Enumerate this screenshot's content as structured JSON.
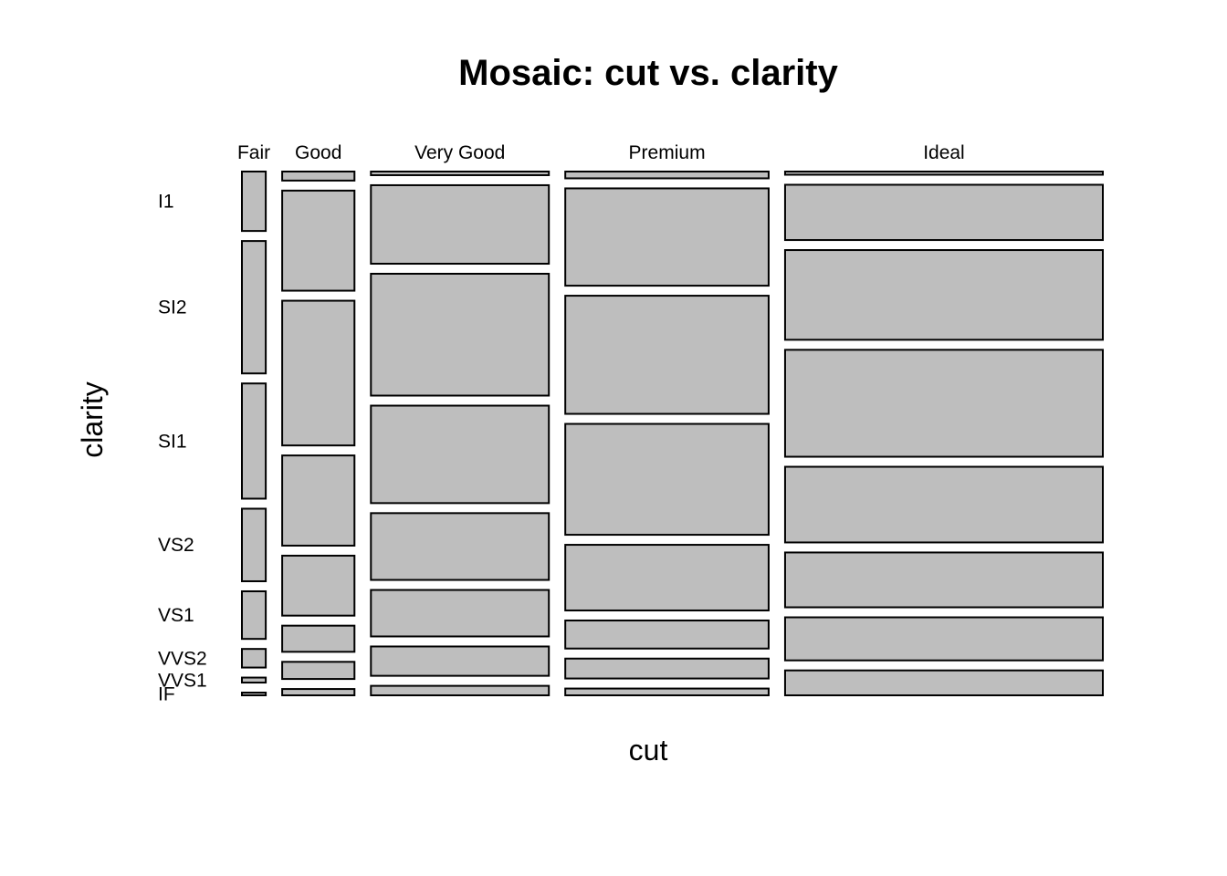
{
  "chart_data": {
    "type": "mosaic",
    "title": "Mosaic: cut vs. clarity",
    "xlabel": "cut",
    "ylabel": "clarity",
    "categories": [
      "Fair",
      "Good",
      "Very Good",
      "Premium",
      "Ideal"
    ],
    "clarity_levels": [
      "I1",
      "SI2",
      "SI1",
      "VS2",
      "VS1",
      "VVS2",
      "VVS1",
      "IF"
    ],
    "cut_share": [
      0.03,
      0.091,
      0.224,
      0.256,
      0.4
    ],
    "proportions": {
      "Fair": [
        0.131,
        0.292,
        0.254,
        0.16,
        0.105,
        0.041,
        0.011,
        0.006
      ],
      "Good": [
        0.02,
        0.222,
        0.321,
        0.2,
        0.133,
        0.058,
        0.038,
        0.014
      ],
      "Very Good": [
        0.008,
        0.174,
        0.27,
        0.216,
        0.148,
        0.103,
        0.065,
        0.021
      ],
      "Premium": [
        0.015,
        0.215,
        0.261,
        0.245,
        0.145,
        0.062,
        0.044,
        0.015
      ],
      "Ideal": [
        0.007,
        0.122,
        0.198,
        0.236,
        0.167,
        0.121,
        0.095,
        0.055
      ]
    },
    "fill_color": "#bebebe",
    "stroke_color": "#000000",
    "grid": false,
    "legend": "none"
  }
}
